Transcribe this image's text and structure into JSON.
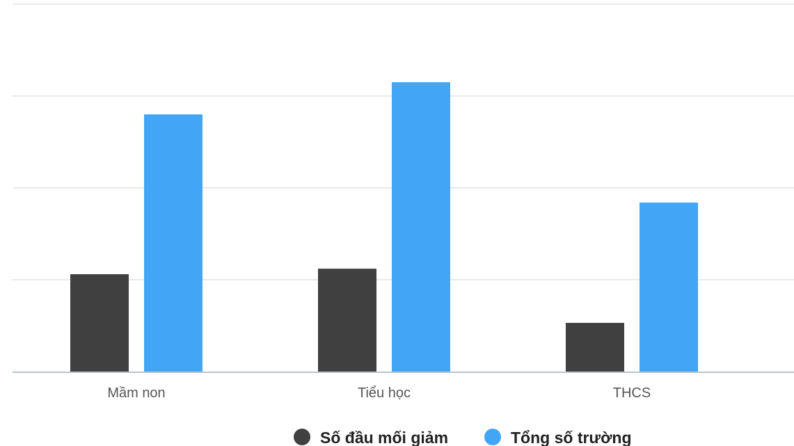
{
  "chart_data": {
    "type": "bar",
    "categories": [
      "Mầm non",
      "Tiểu học",
      "THCS"
    ],
    "series": [
      {
        "name": "Số đầu mối giảm",
        "values": [
          1060,
          1120,
          530
        ],
        "color": "#404040"
      },
      {
        "name": "Tổng số trường",
        "values": [
          2800,
          3150,
          1840
        ],
        "color": "#42a5f5"
      }
    ],
    "ylim": [
      0,
      4000
    ],
    "grid": true,
    "y_tick_labels_shown": false,
    "legend_position": "bottom-center"
  }
}
